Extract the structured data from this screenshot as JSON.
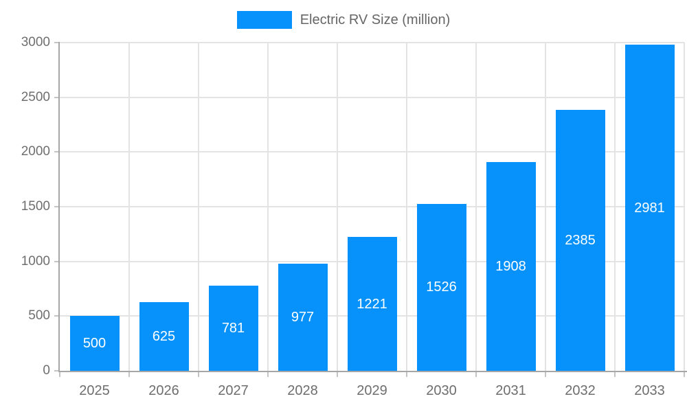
{
  "chart_data": {
    "type": "bar",
    "title": "",
    "legend_label": "Electric RV Size (million)",
    "legend_position": "top",
    "categories": [
      "2025",
      "2026",
      "2027",
      "2028",
      "2029",
      "2030",
      "2031",
      "2032",
      "2033"
    ],
    "values": [
      500,
      625,
      781,
      977,
      1221,
      1526,
      1908,
      2385,
      2981
    ],
    "xlabel": "",
    "ylabel": "",
    "ylim": [
      0,
      3000
    ],
    "yticks": [
      0,
      500,
      1000,
      1500,
      2000,
      2500,
      3000
    ],
    "grid": true,
    "bar_labels_inside": true,
    "colors": {
      "bar": "#0692fa",
      "bar_label": "#ffffff",
      "axis_text": "#6e6e6e",
      "legend_text": "#666666",
      "gridline": "#e3e3e3",
      "axis_line": "#a6a6a6",
      "tick": "#c4c4c4",
      "background": "#ffffff"
    }
  }
}
